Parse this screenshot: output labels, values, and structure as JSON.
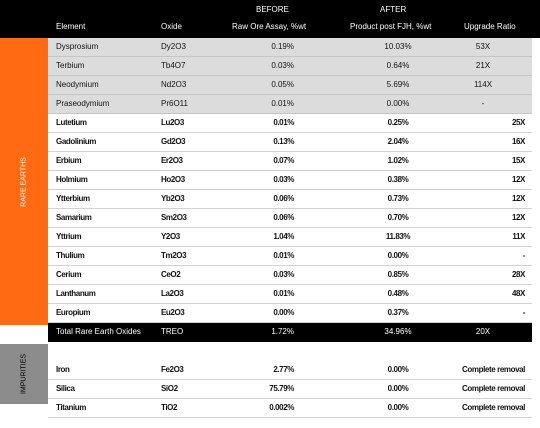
{
  "header": {
    "before": "BEFORE",
    "after": "AFTER",
    "element": "Element",
    "oxide": "Oxide",
    "raw_assay": "Raw Ore Assay, %wt",
    "product": "Product post FJH, %wt",
    "upgrade": "Upgrade Ratio"
  },
  "groups": {
    "rare_earths": "RARE EARTHS",
    "impurities": "IMPURITIES"
  },
  "rare_earths": [
    {
      "element": "Dysprosium",
      "oxide": "Dy2O3",
      "before": "0.19%",
      "after": "10.03%",
      "upgrade": "53X",
      "style": "grey"
    },
    {
      "element": "Terbium",
      "oxide": "Tb4O7",
      "before": "0.03%",
      "after": "0.64%",
      "upgrade": "21X",
      "style": "grey"
    },
    {
      "element": "Neodymium",
      "oxide": "Nd2O3",
      "before": "0.05%",
      "after": "5.69%",
      "upgrade": "114X",
      "style": "grey"
    },
    {
      "element": "Praseodymium",
      "oxide": "Pr6O11",
      "before": "0.01%",
      "after": "0.00%",
      "upgrade": "-",
      "style": "grey"
    },
    {
      "element": "Lutetium",
      "oxide": "Lu2O3",
      "before": "0.01%",
      "after": "0.25%",
      "upgrade": "25X",
      "style": "white"
    },
    {
      "element": "Gadolinium",
      "oxide": "Gd2O3",
      "before": "0.13%",
      "after": "2.04%",
      "upgrade": "16X",
      "style": "white"
    },
    {
      "element": "Erbium",
      "oxide": "Er2O3",
      "before": "0.07%",
      "after": "1.02%",
      "upgrade": "15X",
      "style": "white"
    },
    {
      "element": "Holmium",
      "oxide": "Ho2O3",
      "before": "0.03%",
      "after": "0.38%",
      "upgrade": "12X",
      "style": "white"
    },
    {
      "element": "Ytterbium",
      "oxide": "Yb2O3",
      "before": "0.06%",
      "after": "0.73%",
      "upgrade": "12X",
      "style": "white"
    },
    {
      "element": "Samarium",
      "oxide": "Sm2O3",
      "before": "0.06%",
      "after": "0.70%",
      "upgrade": "12X",
      "style": "white"
    },
    {
      "element": "Yttrium",
      "oxide": "Y2O3",
      "before": "1.04%",
      "after": "11.83%",
      "upgrade": "11X",
      "style": "white"
    },
    {
      "element": "Thulium",
      "oxide": "Tm2O3",
      "before": "0.01%",
      "after": "0.00%",
      "upgrade": "-",
      "style": "white"
    },
    {
      "element": "Cerium",
      "oxide": "CeO2",
      "before": "0.03%",
      "after": "0.85%",
      "upgrade": "28X",
      "style": "white"
    },
    {
      "element": "Lanthanum",
      "oxide": "La2O3",
      "before": "0.01%",
      "after": "0.48%",
      "upgrade": "48X",
      "style": "white"
    },
    {
      "element": "Europium",
      "oxide": "Eu2O3",
      "before": "0.00%",
      "after": "0.37%",
      "upgrade": "-",
      "style": "white"
    }
  ],
  "total": {
    "element": "Total Rare Earth Oxides",
    "oxide": "TREO",
    "before": "1.72%",
    "after": "34.96%",
    "upgrade": "20X"
  },
  "impurities": [
    {
      "element": "Iron",
      "oxide": "Fe2O3",
      "before": "2.77%",
      "after": "0.00%",
      "upgrade": "Complete removal"
    },
    {
      "element": "Silica",
      "oxide": "SiO2",
      "before": "75.79%",
      "after": "0.00%",
      "upgrade": "Complete removal"
    },
    {
      "element": "Titanium",
      "oxide": "TiO2",
      "before": "0.002%",
      "after": "0.00%",
      "upgrade": "Complete removal"
    }
  ]
}
